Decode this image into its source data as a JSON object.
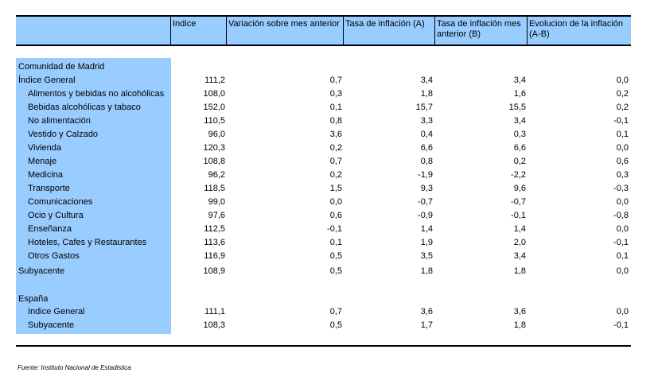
{
  "headers": [
    "",
    "Indice",
    "Variación sobre mes anterior",
    "Tasa de inflación (A)",
    "Tasa de inflación mes anterior (B)",
    "Evolucion de la inflación (A-B)"
  ],
  "madrid": {
    "section_label": "Comunidad de Madrid",
    "rows": [
      {
        "label": "Índice General",
        "indent": 0,
        "values": [
          "111,2",
          "0,7",
          "3,4",
          "3,4",
          "0,0"
        ]
      },
      {
        "label": "Alimentos y bebidas no alcohólicas",
        "indent": 1,
        "values": [
          "108,0",
          "0,3",
          "1,8",
          "1,6",
          "0,2"
        ]
      },
      {
        "label": "Bebidas alcohólicas y tabaco",
        "indent": 1,
        "values": [
          "152,0",
          "0,1",
          "15,7",
          "15,5",
          "0,2"
        ]
      },
      {
        "label": "No alimentación",
        "indent": 1,
        "values": [
          "110,5",
          "0,8",
          "3,3",
          "3,4",
          "-0,1"
        ]
      },
      {
        "label": "Vestido y Calzado",
        "indent": 1,
        "values": [
          "96,0",
          "3,6",
          "0,4",
          "0,3",
          "0,1"
        ]
      },
      {
        "label": "Vivienda",
        "indent": 1,
        "values": [
          "120,3",
          "0,2",
          "6,6",
          "6,6",
          "0,0"
        ]
      },
      {
        "label": "Menaje",
        "indent": 1,
        "values": [
          "108,8",
          "0,7",
          "0,8",
          "0,2",
          "0,6"
        ]
      },
      {
        "label": "Medicina",
        "indent": 1,
        "values": [
          "96,2",
          "0,2",
          "-1,9",
          "-2,2",
          "0,3"
        ]
      },
      {
        "label": "Transporte",
        "indent": 1,
        "values": [
          "118,5",
          "1,5",
          "9,3",
          "9,6",
          "-0,3"
        ]
      },
      {
        "label": "Comunicaciones",
        "indent": 1,
        "values": [
          "99,0",
          "0,0",
          "-0,7",
          "-0,7",
          "0,0"
        ]
      },
      {
        "label": "Ocio y Cultura",
        "indent": 1,
        "values": [
          "97,6",
          "0,6",
          "-0,9",
          "-0,1",
          "-0,8"
        ]
      },
      {
        "label": "Enseñanza",
        "indent": 1,
        "values": [
          "112,5",
          "-0,1",
          "1,4",
          "1,4",
          "0,0"
        ]
      },
      {
        "label": "Hoteles, Cafes y Restaurantes",
        "indent": 1,
        "values": [
          "113,6",
          "0,1",
          "1,9",
          "2,0",
          "-0,1"
        ]
      },
      {
        "label": "Otros Gastos",
        "indent": 1,
        "values": [
          "116,9",
          "0,5",
          "3,5",
          "3,4",
          "0,1"
        ]
      },
      {
        "label": "Subyacente",
        "indent": 0,
        "values": [
          "108,9",
          "0,5",
          "1,8",
          "1,8",
          "0,0"
        ]
      }
    ]
  },
  "espana": {
    "section_label": "España",
    "rows": [
      {
        "label": "Indice General",
        "indent": 1,
        "values": [
          "111,1",
          "0,7",
          "3,6",
          "3,6",
          "0,0"
        ]
      },
      {
        "label": "Subyacente",
        "indent": 1,
        "values": [
          "108,3",
          "0,5",
          "1,7",
          "1,8",
          "-0,1"
        ]
      }
    ]
  },
  "source": "Fuente: Instituto Nacional de Estadistica"
}
